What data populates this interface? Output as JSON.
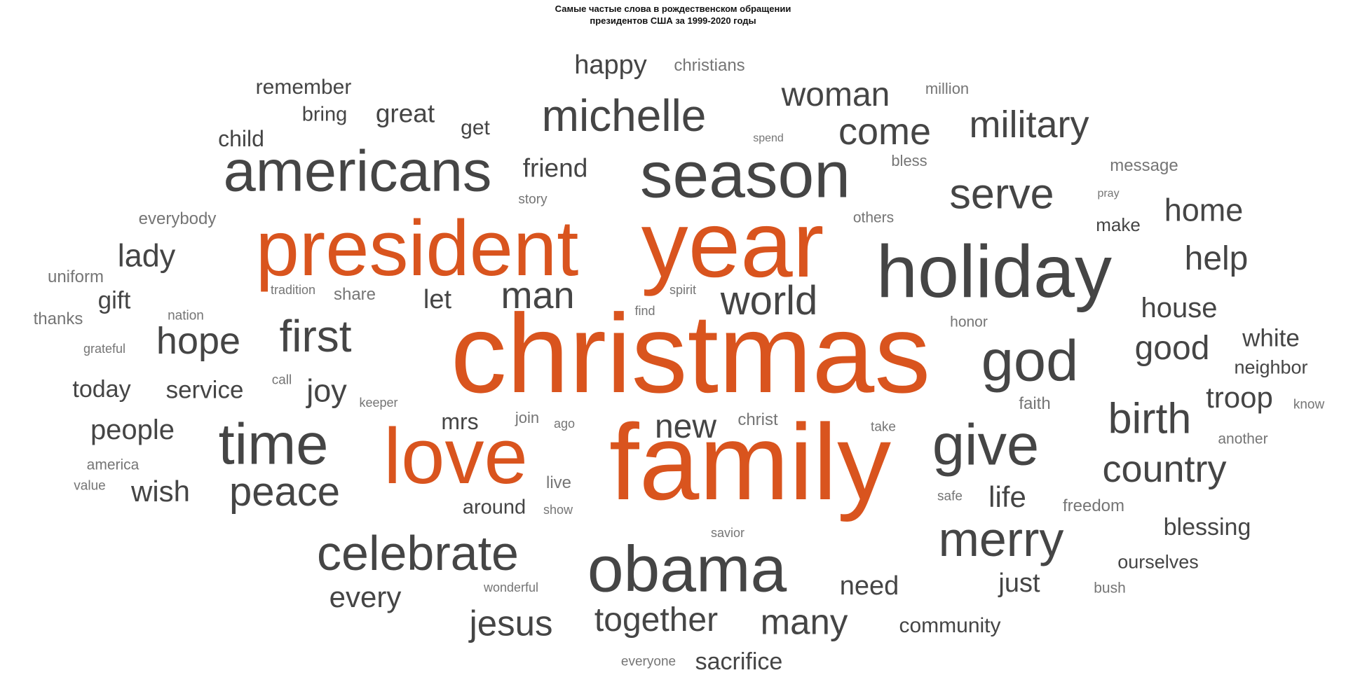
{
  "chart_data": {
    "type": "wordcloud",
    "title_line1": "Самые частые слова в рождественском обращении",
    "title_line2": "президентов США за 1999-2020 годы",
    "colors": {
      "highlight": "#D9541E",
      "default": "#454545",
      "light": "#757575"
    },
    "words": [
      {
        "text": "christmas",
        "weight": 100,
        "highlight": true
      },
      {
        "text": "family",
        "weight": 96,
        "highlight": true
      },
      {
        "text": "year",
        "weight": 84,
        "highlight": true
      },
      {
        "text": "president",
        "weight": 70,
        "highlight": true
      },
      {
        "text": "love",
        "weight": 70,
        "highlight": true
      },
      {
        "text": "holiday",
        "weight": 66
      },
      {
        "text": "season",
        "weight": 58
      },
      {
        "text": "obama",
        "weight": 58
      },
      {
        "text": "americans",
        "weight": 52
      },
      {
        "text": "give",
        "weight": 52
      },
      {
        "text": "time",
        "weight": 52
      },
      {
        "text": "god",
        "weight": 52
      },
      {
        "text": "celebrate",
        "weight": 44
      },
      {
        "text": "merry",
        "weight": 44
      },
      {
        "text": "michelle",
        "weight": 40
      },
      {
        "text": "first",
        "weight": 40
      },
      {
        "text": "serve",
        "weight": 38
      },
      {
        "text": "birth",
        "weight": 38
      },
      {
        "text": "world",
        "weight": 36
      },
      {
        "text": "peace",
        "weight": 36
      },
      {
        "text": "come",
        "weight": 34
      },
      {
        "text": "country",
        "weight": 34
      },
      {
        "text": "man",
        "weight": 34
      },
      {
        "text": "hope",
        "weight": 34
      },
      {
        "text": "military",
        "weight": 34
      },
      {
        "text": "jesus",
        "weight": 32
      },
      {
        "text": "many",
        "weight": 32
      },
      {
        "text": "together",
        "weight": 30
      },
      {
        "text": "good",
        "weight": 30
      },
      {
        "text": "new",
        "weight": 30
      },
      {
        "text": "woman",
        "weight": 30
      },
      {
        "text": "help",
        "weight": 30
      },
      {
        "text": "home",
        "weight": 28
      },
      {
        "text": "joy",
        "weight": 28
      },
      {
        "text": "lady",
        "weight": 28
      },
      {
        "text": "troop",
        "weight": 26
      },
      {
        "text": "every",
        "weight": 26
      },
      {
        "text": "life",
        "weight": 26
      },
      {
        "text": "wish",
        "weight": 26
      },
      {
        "text": "house",
        "weight": 25
      },
      {
        "text": "people",
        "weight": 25
      },
      {
        "text": "need",
        "weight": 24
      },
      {
        "text": "just",
        "weight": 24
      },
      {
        "text": "let",
        "weight": 24
      },
      {
        "text": "happy",
        "weight": 24
      },
      {
        "text": "friend",
        "weight": 23
      },
      {
        "text": "great",
        "weight": 23
      },
      {
        "text": "service",
        "weight": 22
      },
      {
        "text": "gift",
        "weight": 22
      },
      {
        "text": "white",
        "weight": 22
      },
      {
        "text": "blessing",
        "weight": 21
      },
      {
        "text": "sacrifice",
        "weight": 21
      },
      {
        "text": "today",
        "weight": 21
      },
      {
        "text": "mrs",
        "weight": 20
      },
      {
        "text": "child",
        "weight": 20
      },
      {
        "text": "community",
        "weight": 19
      },
      {
        "text": "remember",
        "weight": 19
      },
      {
        "text": "get",
        "weight": 19
      },
      {
        "text": "bring",
        "weight": 18
      },
      {
        "text": "around",
        "weight": 18
      },
      {
        "text": "ourselves",
        "weight": 17
      },
      {
        "text": "neighbor",
        "weight": 17
      },
      {
        "text": "make",
        "weight": 16
      },
      {
        "text": "message",
        "weight": 15
      },
      {
        "text": "christians",
        "weight": 15
      },
      {
        "text": "everybody",
        "weight": 15
      },
      {
        "text": "christ",
        "weight": 15
      },
      {
        "text": "share",
        "weight": 15
      },
      {
        "text": "live",
        "weight": 15
      },
      {
        "text": "faith",
        "weight": 15
      },
      {
        "text": "freedom",
        "weight": 15
      },
      {
        "text": "uniform",
        "weight": 15
      },
      {
        "text": "thanks",
        "weight": 15
      },
      {
        "text": "join",
        "weight": 14
      },
      {
        "text": "million",
        "weight": 14
      },
      {
        "text": "bless",
        "weight": 14
      },
      {
        "text": "others",
        "weight": 13
      },
      {
        "text": "another",
        "weight": 13
      },
      {
        "text": "america",
        "weight": 13
      },
      {
        "text": "honor",
        "weight": 13
      },
      {
        "text": "bush",
        "weight": 13
      },
      {
        "text": "everyone",
        "weight": 12
      },
      {
        "text": "story",
        "weight": 12
      },
      {
        "text": "call",
        "weight": 12
      },
      {
        "text": "take",
        "weight": 12
      },
      {
        "text": "safe",
        "weight": 12
      },
      {
        "text": "nation",
        "weight": 12
      },
      {
        "text": "value",
        "weight": 12
      },
      {
        "text": "know",
        "weight": 12
      },
      {
        "text": "savior",
        "weight": 11
      },
      {
        "text": "tradition",
        "weight": 11
      },
      {
        "text": "wonderful",
        "weight": 11
      },
      {
        "text": "grateful",
        "weight": 11
      },
      {
        "text": "spirit",
        "weight": 11
      },
      {
        "text": "find",
        "weight": 11
      },
      {
        "text": "keeper",
        "weight": 11
      },
      {
        "text": "ago",
        "weight": 11
      },
      {
        "text": "show",
        "weight": 11
      },
      {
        "text": "spend",
        "weight": 10
      },
      {
        "text": "pray",
        "weight": 10
      }
    ]
  }
}
